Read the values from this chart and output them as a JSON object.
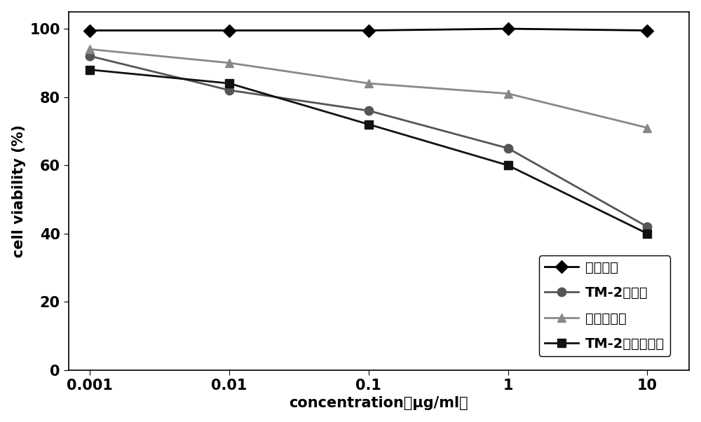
{
  "x": [
    0.001,
    0.01,
    0.1,
    1,
    10
  ],
  "series_order": [
    "空白对照",
    "TM-2溶液组",
    "阳性对照组",
    "TM-2脂质微球组"
  ],
  "series": {
    "空白对照": {
      "values": [
        99.5,
        99.5,
        99.5,
        100,
        99.5
      ],
      "color": "#000000",
      "marker": "D",
      "markersize": 9,
      "linewidth": 2.0,
      "linestyle": "-"
    },
    "TM-2溶液组": {
      "values": [
        92,
        82,
        76,
        65,
        42
      ],
      "color": "#555555",
      "marker": "o",
      "markersize": 9,
      "linewidth": 2.0,
      "linestyle": "-"
    },
    "阳性对照组": {
      "values": [
        94,
        90,
        84,
        81,
        71
      ],
      "color": "#888888",
      "marker": "^",
      "markersize": 9,
      "linewidth": 2.0,
      "linestyle": "-"
    },
    "TM-2脂质微球组": {
      "values": [
        88,
        84,
        72,
        60,
        40
      ],
      "color": "#111111",
      "marker": "s",
      "markersize": 9,
      "linewidth": 2.0,
      "linestyle": "-"
    }
  },
  "xlabel": "concentration（μg/ml）",
  "ylabel": "cell viability (%)",
  "ylim": [
    0,
    105
  ],
  "yticks": [
    0,
    20,
    40,
    60,
    80,
    100
  ],
  "ytick_labels": [
    "0",
    "20",
    "40",
    "60",
    "80",
    "100"
  ],
  "xtick_labels": [
    "0.001",
    "0.01",
    "0.1",
    "1",
    "10"
  ],
  "background_color": "#ffffff",
  "label_fontsize": 15,
  "tick_fontsize": 15,
  "legend_fontsize": 14
}
